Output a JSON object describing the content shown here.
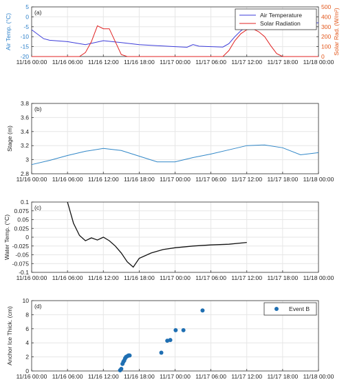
{
  "chart_data": [
    {
      "type": "line",
      "panel_label": "(a)",
      "ylabel": "Air Temp. (°C)",
      "y2label": "Solar Rad. (W/m²)",
      "x_ticks": [
        "11/16 00:00",
        "11/16 06:00",
        "11/16 12:00",
        "11/16 18:00",
        "11/17 00:00",
        "11/17 06:00",
        "11/17 12:00",
        "11/17 18:00",
        "11/18 00:00"
      ],
      "ylim": [
        -20,
        5
      ],
      "y_ticks": [
        "-20",
        "-15",
        "-10",
        "-5",
        "0",
        "5"
      ],
      "y2lim": [
        0,
        500
      ],
      "y2_ticks": [
        "0",
        "100",
        "200",
        "300",
        "400",
        "500"
      ],
      "legend_position": "top-right",
      "series": [
        {
          "name": "Air Temperature",
          "axis": "left",
          "color": "#3b3bd9",
          "x": [
            0,
            2,
            3,
            6,
            9,
            12,
            15,
            18,
            21,
            24,
            26,
            27,
            28,
            30,
            32,
            33,
            34,
            35,
            36,
            37,
            38,
            40,
            42,
            45,
            48
          ],
          "y": [
            -6.5,
            -11,
            -11.8,
            -12.5,
            -14,
            -12,
            -13,
            -14,
            -14.5,
            -15,
            -15.3,
            -14,
            -14.8,
            -15,
            -15.2,
            -13.5,
            -10,
            -7,
            -5,
            -3,
            -2.8,
            -3.8,
            -4.2,
            -3.5,
            -3
          ]
        },
        {
          "name": "Solar Radiation",
          "axis": "right",
          "color": "#e02020",
          "x": [
            0,
            8,
            9,
            10,
            11,
            12,
            13,
            14,
            15,
            16,
            24,
            32,
            33,
            34,
            35,
            36,
            37,
            38,
            39,
            40,
            41,
            42,
            48
          ],
          "y": [
            0,
            0,
            40,
            150,
            310,
            280,
            280,
            150,
            20,
            0,
            0,
            0,
            60,
            160,
            230,
            270,
            280,
            250,
            200,
            110,
            30,
            0,
            0
          ]
        }
      ]
    },
    {
      "type": "line",
      "panel_label": "(b)",
      "ylabel": "Stage (m)",
      "x_ticks": [
        "11/16 00:00",
        "11/16 06:00",
        "11/16 12:00",
        "11/16 18:00",
        "11/17 00:00",
        "11/17 06:00",
        "11/17 12:00",
        "11/17 18:00",
        "11/18 00:00"
      ],
      "ylim": [
        2.8,
        3.8
      ],
      "y_ticks": [
        "2.8",
        "3",
        "3.2",
        "3.4",
        "3.6",
        "3.8"
      ],
      "series": [
        {
          "color": "#2f86c7",
          "x": [
            0,
            3,
            6,
            9,
            12,
            15,
            18,
            21,
            24,
            27,
            30,
            33,
            36,
            39,
            42,
            45,
            48
          ],
          "y": [
            2.93,
            2.99,
            3.06,
            3.12,
            3.16,
            3.13,
            3.05,
            2.97,
            2.97,
            3.03,
            3.08,
            3.14,
            3.2,
            3.21,
            3.17,
            3.07,
            3.1
          ]
        }
      ]
    },
    {
      "type": "line",
      "panel_label": "(c)",
      "ylabel": "Water Temp. (°C)",
      "x_ticks": [
        "11/16 00:00",
        "11/16 06:00",
        "11/16 12:00",
        "11/16 18:00",
        "11/17 00:00",
        "11/17 06:00",
        "11/17 12:00",
        "11/17 18:00",
        "11/18 00:00"
      ],
      "ylim": [
        -0.1,
        0.1
      ],
      "y_ticks": [
        "-0.1",
        "-0.075",
        "-0.05",
        "-0.025",
        "0",
        "0.025",
        "0.05",
        "0.075",
        "0.1"
      ],
      "series": [
        {
          "color": "#111111",
          "x": [
            6,
            7,
            8,
            9,
            10,
            11,
            12,
            13,
            14,
            15,
            16,
            17,
            18,
            20,
            22,
            24,
            27,
            30,
            33,
            36
          ],
          "y": [
            0.1,
            0.04,
            0.005,
            -0.01,
            -0.002,
            -0.008,
            0.0,
            -0.01,
            -0.025,
            -0.045,
            -0.07,
            -0.085,
            -0.06,
            -0.045,
            -0.035,
            -0.03,
            -0.025,
            -0.022,
            -0.02,
            -0.015
          ]
        }
      ]
    },
    {
      "type": "scatter",
      "panel_label": "(d)",
      "ylabel": "Anchor Ice Thick. (cm)",
      "x_ticks": [
        "11/16 00:00",
        "11/16 06:00",
        "11/16 12:00",
        "11/16 18:00",
        "11/17 00:00",
        "11/17 06:00",
        "11/17 12:00",
        "11/17 18:00",
        "11/18 00:00"
      ],
      "ylim": [
        0,
        10
      ],
      "y_ticks": [
        "0",
        "2",
        "4",
        "6",
        "8",
        "10"
      ],
      "legend_position": "top-right",
      "series": [
        {
          "name": "Event B",
          "color": "#1f6fb2",
          "x": [
            14.8,
            15.0,
            15.2,
            15.35,
            15.5,
            15.65,
            15.8,
            16.0,
            16.2,
            16.4,
            21.7,
            22.7,
            23.2,
            24.1,
            25.4,
            28.6
          ],
          "y": [
            0.1,
            0.3,
            1.0,
            1.3,
            1.5,
            1.8,
            2.0,
            2.1,
            2.2,
            2.2,
            2.6,
            4.3,
            4.4,
            5.8,
            5.8,
            8.6
          ]
        }
      ]
    }
  ]
}
